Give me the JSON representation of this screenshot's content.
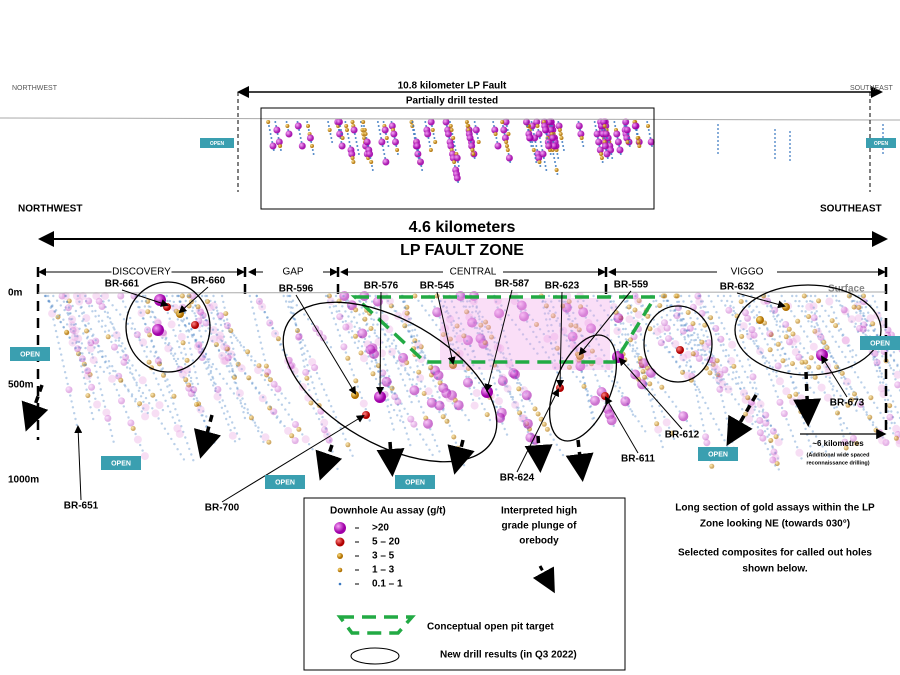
{
  "overview": {
    "northwest": "NORTHWEST",
    "southeast": "SOUTHEAST",
    "fault_title": "10.8 kilometer LP Fault",
    "fault_subtitle": "Partially drill tested",
    "open_labels": [
      "OPEN",
      "OPEN"
    ]
  },
  "section": {
    "northwest": "NORTHWEST",
    "southeast": "SOUTHEAST",
    "length": "4.6 kilometers",
    "zone": "LP FAULT ZONE",
    "zones": [
      "DISCOVERY",
      "GAP",
      "CENTRAL",
      "VIGGO"
    ],
    "depths": [
      "0m",
      "500m",
      "1000m"
    ],
    "surface": "Surface",
    "open_labels": [
      "OPEN",
      "OPEN",
      "OPEN",
      "OPEN",
      "OPEN",
      "OPEN"
    ],
    "holes": [
      "BR-661",
      "BR-660",
      "BR-596",
      "BR-576",
      "BR-545",
      "BR-587",
      "BR-623",
      "BR-559",
      "BR-632",
      "BR-673",
      "BR-612",
      "BR-611",
      "BR-624",
      "BR-700",
      "BR-651"
    ],
    "far_note": [
      "~6 kilometres",
      "(Additional wide spaced",
      "reconnaissance drilling)"
    ]
  },
  "legend": {
    "title": "Downhole Au assay (g/t)",
    "grades": [
      ">20",
      "5 – 20",
      "3 – 5",
      "1 – 3",
      "0.1 – 1"
    ],
    "plunge": [
      "Interpreted high",
      "grade plunge of",
      "orebody"
    ],
    "pit": "Conceptual open pit target",
    "new_results": "New drill results (in Q3 2022)"
  },
  "notes": [
    "Long section of gold assays  within the LP",
    "Zone looking NE (towards 030°)",
    "Selected composites for called out holes",
    "shown below."
  ]
}
